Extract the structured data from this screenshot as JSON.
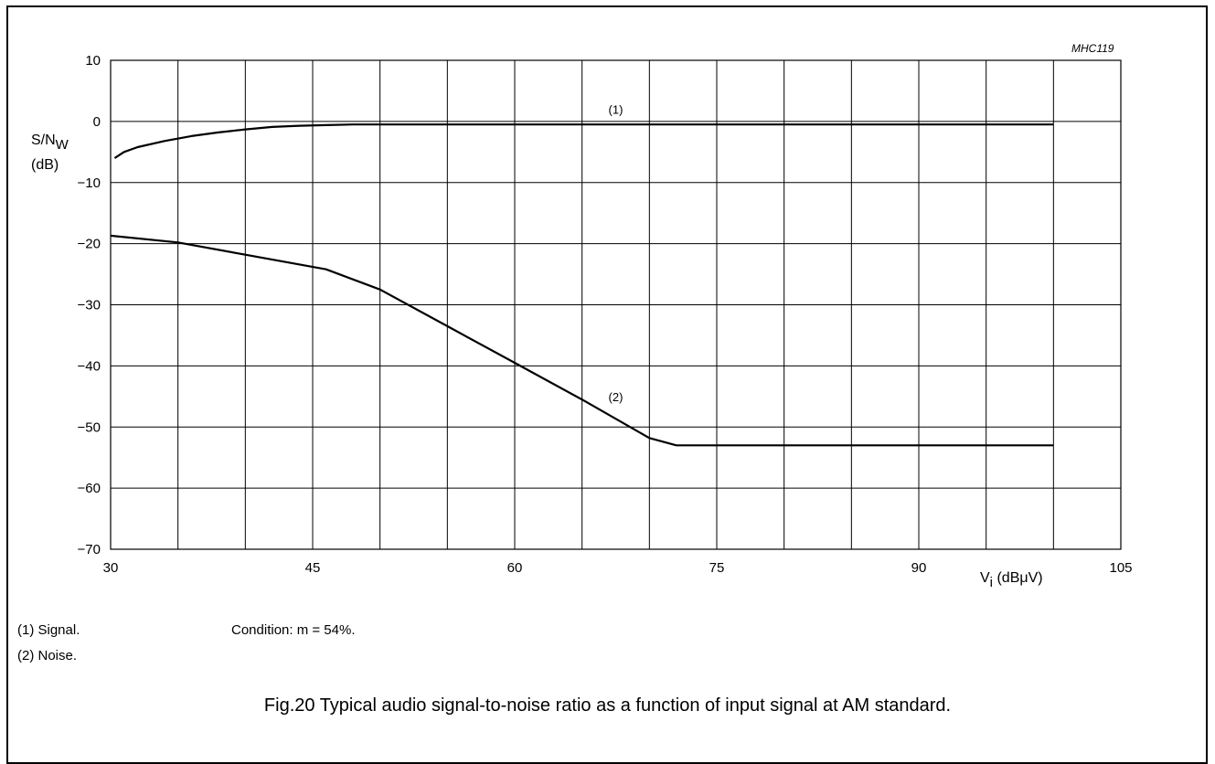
{
  "figure_code": "MHC119",
  "caption": "Fig.20  Typical audio signal-to-noise ratio as a function of input signal at AM standard.",
  "notes": {
    "signal": "(1)  Signal.",
    "noise": "(2)  Noise.",
    "condition": "Condition: m = 54%."
  },
  "chart_data": {
    "type": "line",
    "title": "",
    "ylabel": {
      "main": "S/N",
      "sub": "W",
      "unit": "(dB)"
    },
    "xlabel": {
      "main": "V",
      "sub": "i",
      "unit": " (dBμV)"
    },
    "xlim": [
      30,
      105
    ],
    "ylim": [
      -70,
      10
    ],
    "x_ticks": [
      30,
      45,
      60,
      75,
      90,
      105
    ],
    "x_tick_labels": [
      "30",
      "45",
      "60",
      "75",
      "90",
      "105"
    ],
    "y_ticks": [
      10,
      0,
      -10,
      -20,
      -30,
      -40,
      -50,
      -60,
      -70
    ],
    "y_tick_labels": [
      "10",
      "0",
      "−10",
      "−20",
      "−30",
      "−40",
      "−50",
      "−60",
      "−70"
    ],
    "x_grid_step": 5,
    "y_grid_step": 10,
    "grid": true,
    "series": [
      {
        "label": "(1)",
        "label_at": [
          67.5,
          2
        ],
        "x": [
          30.3,
          31,
          32,
          34,
          36,
          38,
          40,
          42,
          44,
          46,
          48,
          50,
          60,
          70,
          80,
          90,
          100
        ],
        "y": [
          -6,
          -5,
          -4.2,
          -3.2,
          -2.4,
          -1.8,
          -1.3,
          -0.9,
          -0.7,
          -0.6,
          -0.5,
          -0.5,
          -0.5,
          -0.5,
          -0.5,
          -0.5,
          -0.5
        ]
      },
      {
        "label": "(2)",
        "label_at": [
          67.5,
          -45
        ],
        "x": [
          30,
          35,
          40,
          46,
          50,
          55,
          60,
          65,
          70,
          72,
          80,
          90,
          100
        ],
        "y": [
          -18.7,
          -19.8,
          -21.8,
          -24.2,
          -27.5,
          -33.5,
          -39.5,
          -45.5,
          -51.8,
          -53,
          -53,
          -53,
          -53
        ]
      }
    ]
  }
}
